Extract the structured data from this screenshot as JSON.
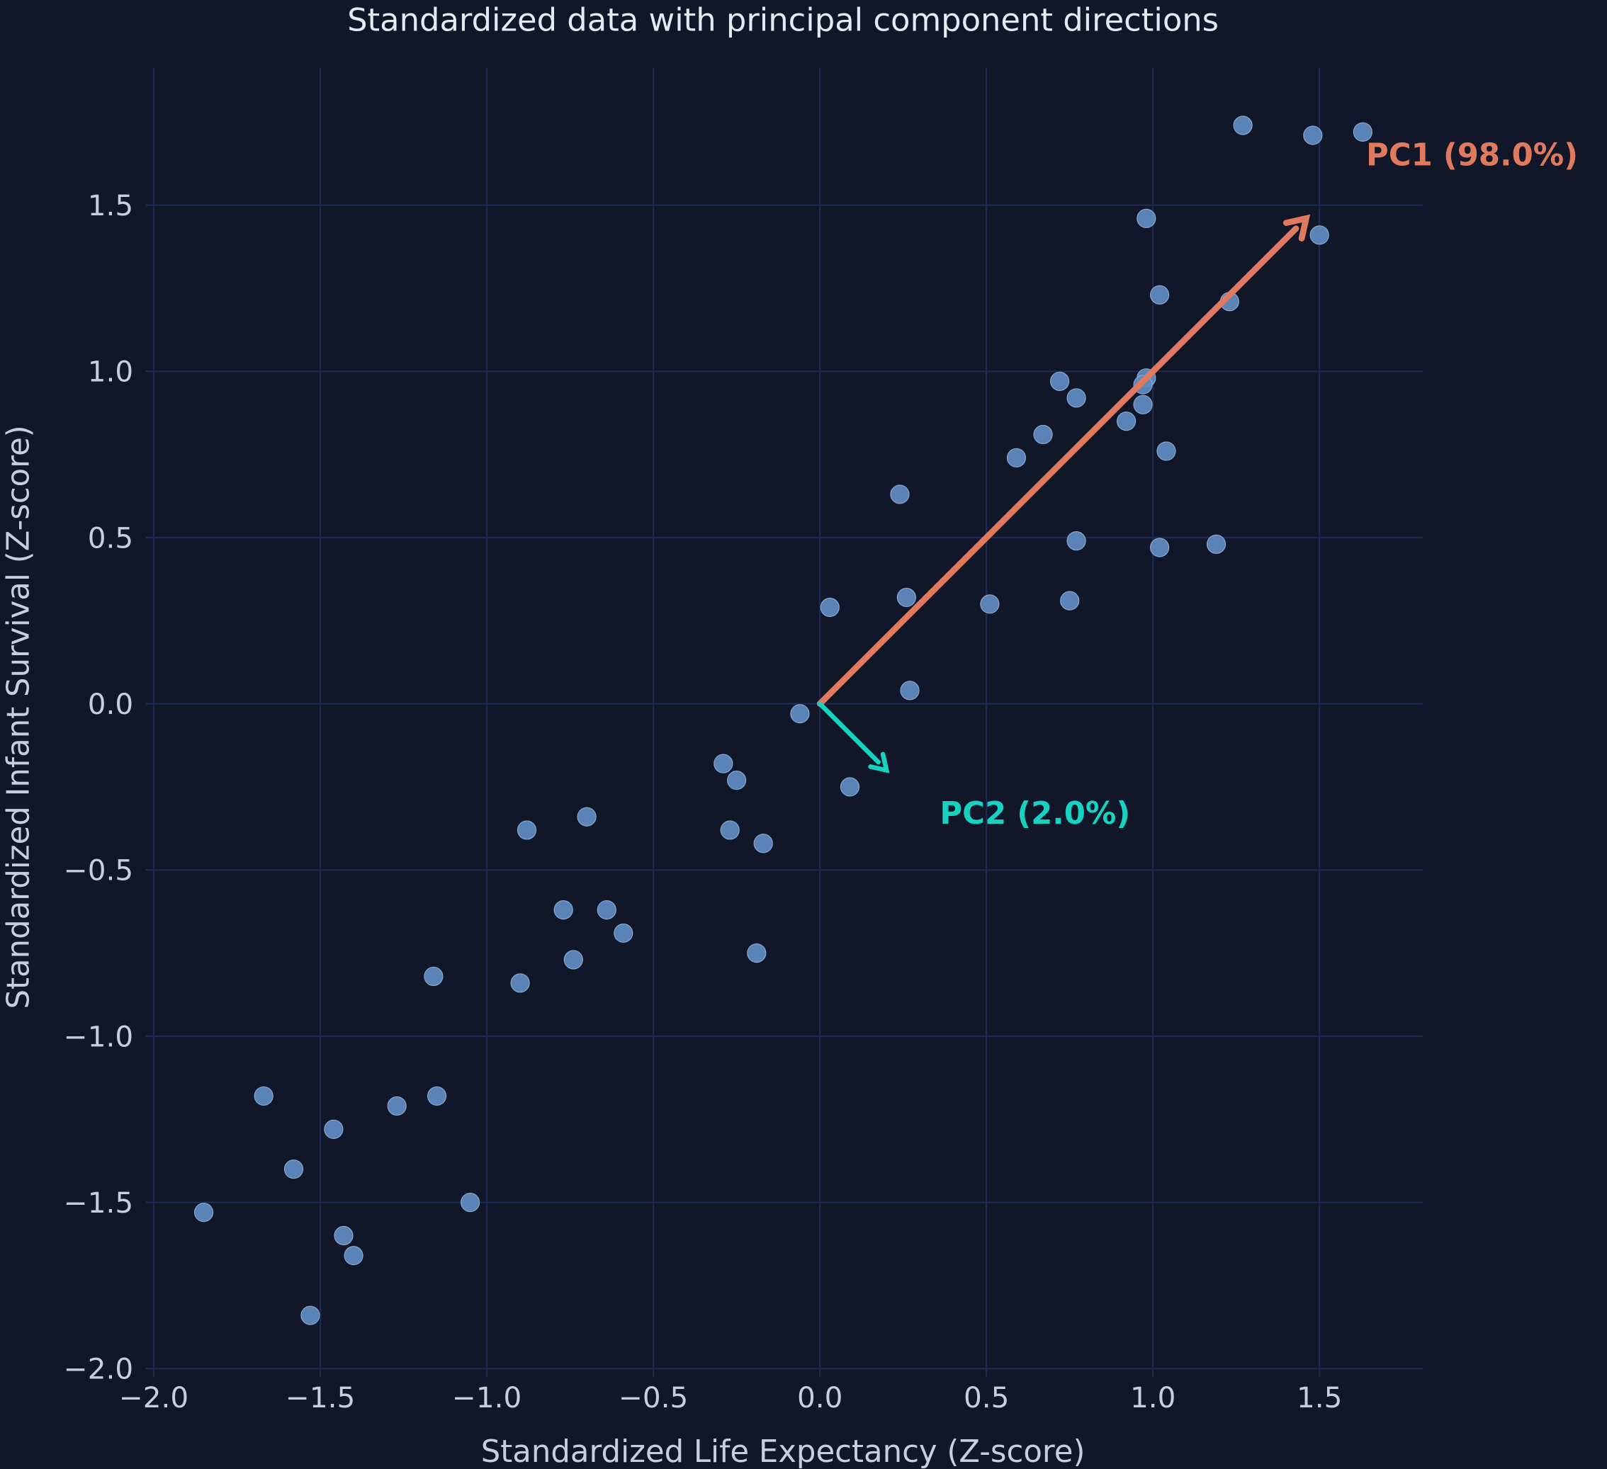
{
  "chart_data": {
    "type": "scatter",
    "title": "Standardized data with principal component directions",
    "xlabel": "Standardized Life Expectancy (Z-score)",
    "ylabel": "Standardized Infant Survival (Z-score)",
    "xlim": [
      -2.0,
      1.8
    ],
    "ylim": [
      -2.0,
      1.92
    ],
    "xticks": [
      -2.0,
      -1.5,
      -1.0,
      -0.5,
      0.0,
      0.5,
      1.0,
      1.5
    ],
    "yticks": [
      -2.0,
      -1.5,
      -1.0,
      -0.5,
      0.0,
      0.5,
      1.0,
      1.5
    ],
    "xtick_labels": [
      "−2.0",
      "−1.5",
      "−1.0",
      "−0.5",
      "0.0",
      "0.5",
      "1.0",
      "1.5"
    ],
    "ytick_labels": [
      "−2.0",
      "−1.5",
      "−1.0",
      "−0.5",
      "0.0",
      "0.5",
      "1.0",
      "1.5"
    ],
    "grid": true,
    "points": [
      [
        1.27,
        1.74
      ],
      [
        1.48,
        1.71
      ],
      [
        1.63,
        1.72
      ],
      [
        0.98,
        1.46
      ],
      [
        1.5,
        1.41
      ],
      [
        1.02,
        1.23
      ],
      [
        1.23,
        1.21
      ],
      [
        0.72,
        0.97
      ],
      [
        0.77,
        0.92
      ],
      [
        0.98,
        0.98
      ],
      [
        0.97,
        0.96
      ],
      [
        0.97,
        0.9
      ],
      [
        0.92,
        0.85
      ],
      [
        0.67,
        0.81
      ],
      [
        0.59,
        0.74
      ],
      [
        1.04,
        0.76
      ],
      [
        0.24,
        0.63
      ],
      [
        0.77,
        0.49
      ],
      [
        1.02,
        0.47
      ],
      [
        1.19,
        0.48
      ],
      [
        0.03,
        0.29
      ],
      [
        0.26,
        0.32
      ],
      [
        0.51,
        0.3
      ],
      [
        0.75,
        0.31
      ],
      [
        0.27,
        0.04
      ],
      [
        -0.06,
        -0.03
      ],
      [
        0.09,
        -0.25
      ],
      [
        -0.29,
        -0.18
      ],
      [
        -0.25,
        -0.23
      ],
      [
        -0.27,
        -0.38
      ],
      [
        -0.17,
        -0.42
      ],
      [
        -0.7,
        -0.34
      ],
      [
        -0.88,
        -0.38
      ],
      [
        -0.77,
        -0.62
      ],
      [
        -0.64,
        -0.62
      ],
      [
        -0.59,
        -0.69
      ],
      [
        -0.74,
        -0.77
      ],
      [
        -0.19,
        -0.75
      ],
      [
        -1.16,
        -0.82
      ],
      [
        -0.9,
        -0.84
      ],
      [
        -1.67,
        -1.18
      ],
      [
        -1.27,
        -1.21
      ],
      [
        -1.15,
        -1.18
      ],
      [
        -1.46,
        -1.28
      ],
      [
        -1.58,
        -1.4
      ],
      [
        -1.05,
        -1.5
      ],
      [
        -1.85,
        -1.53
      ],
      [
        -1.43,
        -1.6
      ],
      [
        -1.4,
        -1.66
      ],
      [
        -1.53,
        -1.84
      ]
    ],
    "arrows": [
      {
        "name": "PC1 (98.0%)",
        "from": [
          0,
          0
        ],
        "to": [
          1.46,
          1.46
        ],
        "label_at": [
          1.64,
          1.65
        ],
        "color": "#e07a5f"
      },
      {
        "name": "PC2 (2.0%)",
        "from": [
          0,
          0
        ],
        "to": [
          0.2,
          -0.2
        ],
        "label_at": [
          0.36,
          -0.33
        ],
        "color": "#17d1c1"
      }
    ],
    "colors": {
      "background": "#111729",
      "grid": "#1e2a55",
      "points": "#5e8ac0",
      "text": "#c9cde0"
    }
  }
}
